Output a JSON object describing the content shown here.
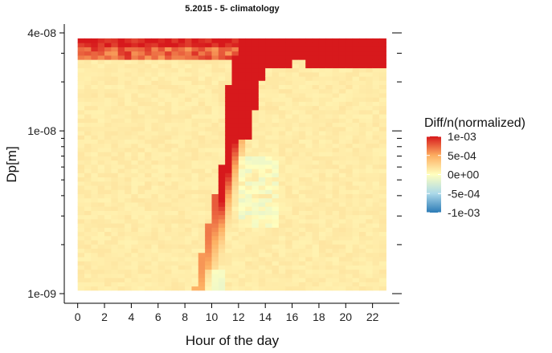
{
  "chart_data": {
    "type": "heatmap",
    "title": "5.2015 - 5- climatology",
    "xlabel": "Hour of the day",
    "ylabel": "Dp[m]",
    "x_ticks": [
      0,
      2,
      4,
      6,
      8,
      10,
      12,
      14,
      16,
      18,
      20,
      22
    ],
    "x_tick_labels": [
      "0",
      "2",
      "4",
      "6",
      "8",
      "10",
      "12",
      "14",
      "16",
      "18",
      "20",
      "22"
    ],
    "xlim": [
      -1,
      24
    ],
    "y_scale": "log",
    "y_ticks": [
      1e-09,
      1e-08,
      4e-08
    ],
    "y_tick_labels": [
      "1e-09",
      "1e-08",
      "4e-08"
    ],
    "ylim": [
      8e-10,
      5e-08
    ],
    "hours": [
      0,
      23
    ],
    "dp_range": [
      1.05e-09,
      3.7e-08
    ],
    "legend": {
      "title": "Diff/n(normalized)",
      "min": -0.001,
      "max": 0.001,
      "ticks": [
        0.001,
        0.0005,
        0,
        -0.0005,
        -0.001
      ],
      "tick_labels": [
        "1e-03",
        "5e-04",
        "0e+00",
        "-5e-04",
        "-1e-03"
      ],
      "placement": "right"
    },
    "colors": {
      "high": "#d7191c",
      "mid_high": "#fdae61",
      "mid": "#ffffbf",
      "mid_low": "#abd9e9",
      "low": "#2c7bb6"
    },
    "description_of_values": "Nucleation banana: values near 0 elsewhere; large positive (>=1e-03) band rising from ~9h at 4e-09 to ~13h at 3e-08; saturated region at largest sizes in evening (18-23h)."
  }
}
